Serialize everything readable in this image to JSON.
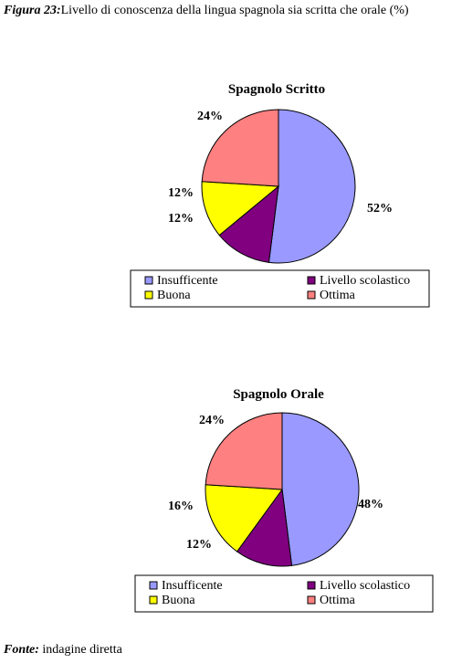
{
  "caption": {
    "label": "Figura 23:",
    "text": "Livello di conoscenza della lingua spagnola sia scritta che orale (%)"
  },
  "source": {
    "label": "Fonte:",
    "text": " indagine diretta"
  },
  "chart_data": [
    {
      "type": "pie",
      "title": "Spagnolo Scritto",
      "categories": [
        "Insufficente",
        "Livello scolastico",
        "Buona",
        "Ottima"
      ],
      "values": [
        52,
        12,
        12,
        24
      ],
      "labels": [
        "52%",
        "12%",
        "12%",
        "24%"
      ],
      "colors": [
        "#9999ff",
        "#800080",
        "#ffff00",
        "#ff8080"
      ],
      "legend": "bottom"
    },
    {
      "type": "pie",
      "title": "Spagnolo Orale",
      "categories": [
        "Insufficente",
        "Livello scolastico",
        "Buona",
        "Ottima"
      ],
      "values": [
        48,
        12,
        16,
        24
      ],
      "labels": [
        "48%",
        "12%",
        "16%",
        "24%"
      ],
      "colors": [
        "#9999ff",
        "#800080",
        "#ffff00",
        "#ff8080"
      ],
      "legend": "bottom"
    }
  ]
}
